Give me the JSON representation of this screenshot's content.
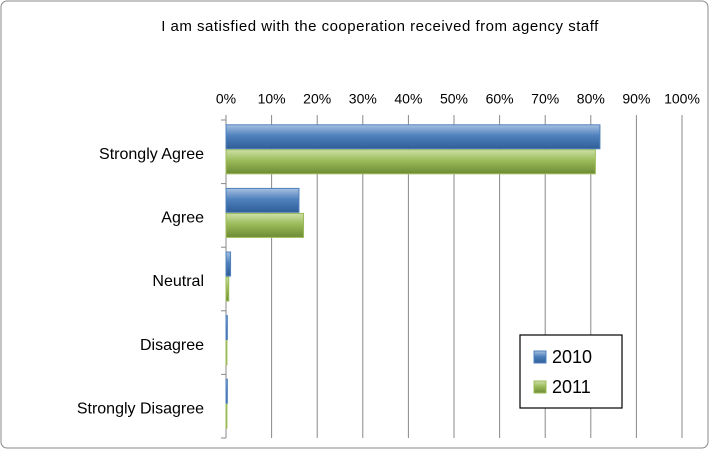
{
  "chart_data": {
    "type": "bar",
    "orientation": "horizontal",
    "title": "I am satisfied with the cooperation received from agency staff",
    "categories": [
      "Strongly Agree",
      "Agree",
      "Neutral",
      "Disagree",
      "Strongly Disagree"
    ],
    "series": [
      {
        "name": "2010",
        "color": "#4f81bd",
        "values": [
          82,
          16,
          1,
          0.3,
          0.3
        ]
      },
      {
        "name": "2011",
        "color": "#9bbb59",
        "values": [
          81,
          17,
          0.6,
          0.2,
          0.2
        ]
      }
    ],
    "xlim": [
      0,
      100
    ],
    "xticks": [
      {
        "value": 0,
        "label": "0%"
      },
      {
        "value": 10,
        "label": "10%"
      },
      {
        "value": 20,
        "label": "20%"
      },
      {
        "value": 30,
        "label": "30%"
      },
      {
        "value": 40,
        "label": "40%"
      },
      {
        "value": 50,
        "label": "50%"
      },
      {
        "value": 60,
        "label": "60%"
      },
      {
        "value": 70,
        "label": "70%"
      },
      {
        "value": 80,
        "label": "80%"
      },
      {
        "value": 90,
        "label": "90%"
      },
      {
        "value": 100,
        "label": "100%"
      }
    ],
    "grid": true,
    "legend": "lower right"
  }
}
